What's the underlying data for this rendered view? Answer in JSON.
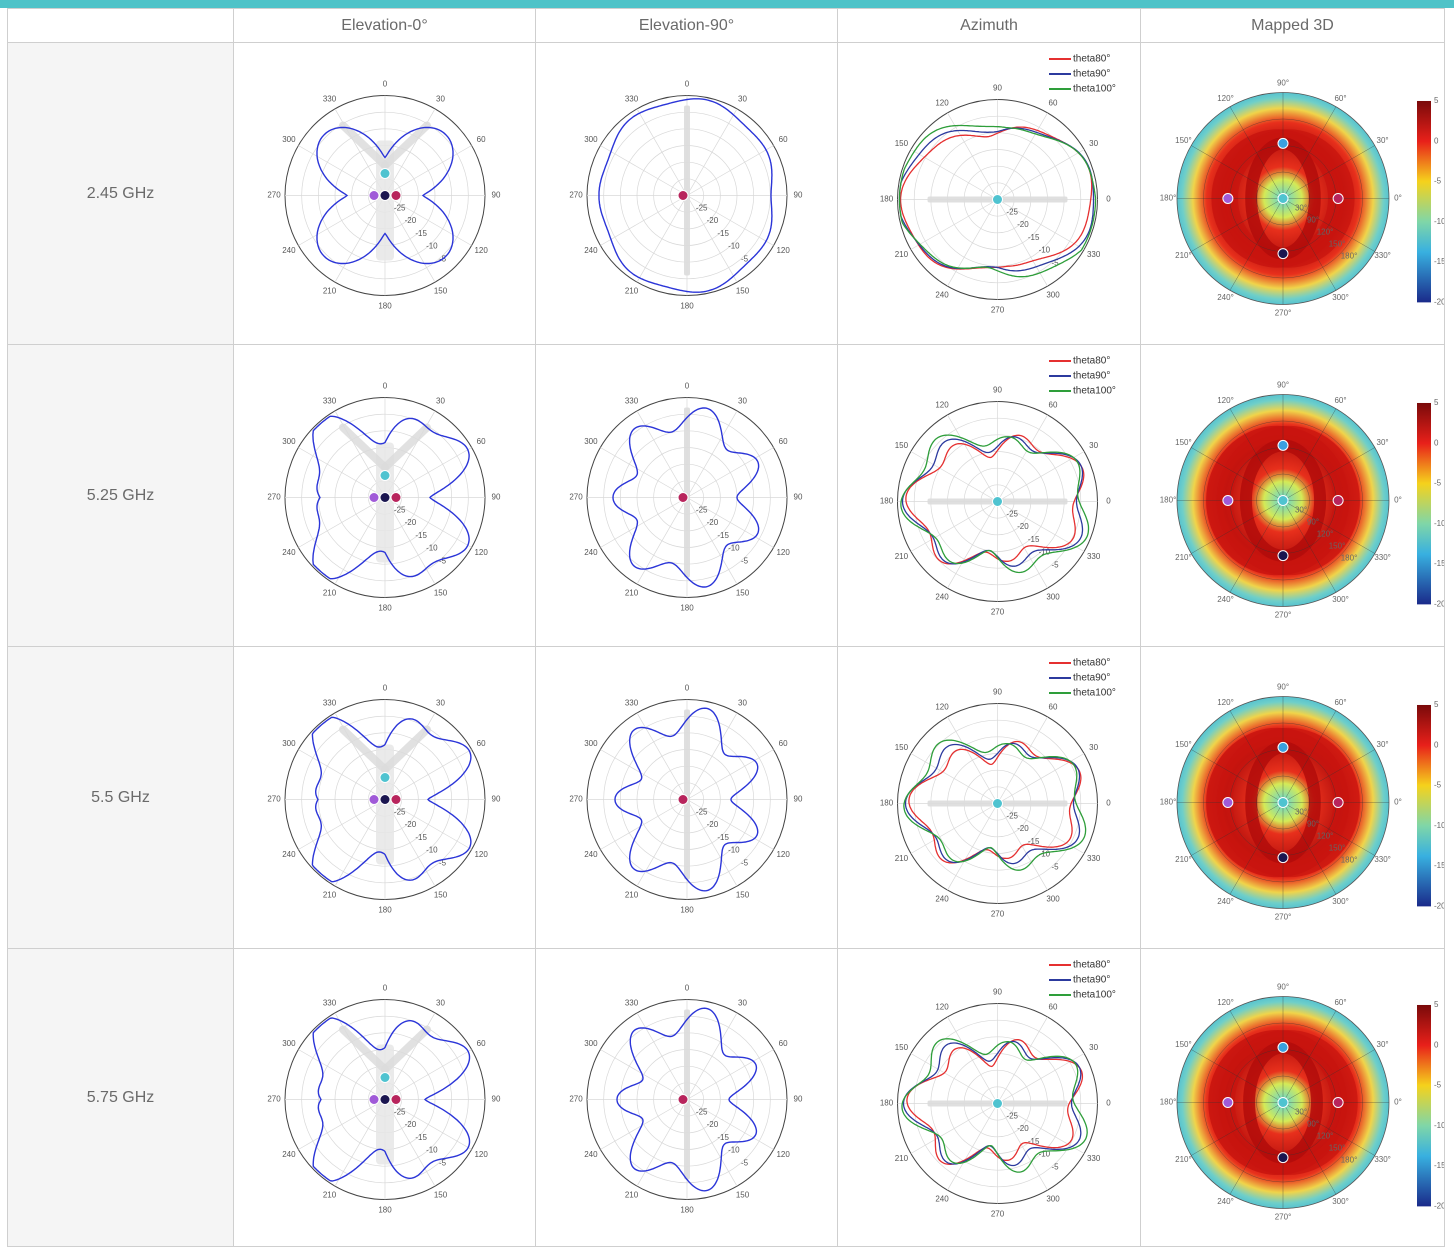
{
  "headers": [
    "",
    "Elevation-0°",
    "Elevation-90°",
    "Azimuth",
    "Mapped 3D"
  ],
  "colors": {
    "accent": "#4fc3c8",
    "pattern": "#2b35d8",
    "theta80": "#e53030",
    "theta90": "#2c3a9e",
    "theta100": "#2e9e3a"
  },
  "legend": [
    "theta80°",
    "theta90°",
    "theta100°"
  ],
  "ring_labels": [
    "-25",
    "-20",
    "-15",
    "-10",
    "-5"
  ],
  "elev_angle_labels": [
    "0",
    "30",
    "60",
    "90",
    "120",
    "150",
    "180",
    "210",
    "240",
    "270",
    "300",
    "330"
  ],
  "az_angle_labels": [
    "90",
    "60",
    "30",
    "0",
    "330",
    "300",
    "270",
    "240",
    "210",
    "180",
    "150",
    "120"
  ],
  "map_angle_labels": [
    "90°",
    "60°",
    "30°",
    "0°",
    "330°",
    "300°",
    "270°",
    "240°",
    "210°",
    "180°",
    "150°",
    "120°"
  ],
  "map_inner_labels": [
    "30°",
    "90°",
    "120°",
    "150°",
    "180°"
  ],
  "colorbar_ticks": [
    "5",
    "0",
    "-5",
    "-10",
    "-15",
    "-20"
  ],
  "chart_data": [
    {
      "type": "polar",
      "band": "2.45 GHz",
      "elev0": {
        "lobes": 4,
        "base": 0.38,
        "amp": 0.48,
        "phase": 45,
        "ripple": 0.0
      },
      "elev90": {
        "lobes": 2,
        "base": 0.86,
        "amp": 0.1,
        "phase": 0,
        "ripple": 0.02
      },
      "azimuth": {
        "lobes": 2,
        "base": 0.68,
        "amp": 0.3,
        "phase": 90,
        "ripple": 0.02
      },
      "mapped": {
        "ring": 0.55,
        "inner": 0.3
      }
    },
    {
      "type": "polar",
      "band": "5.25 GHz",
      "elev0": {
        "lobes": 4,
        "base": 0.55,
        "amp": 0.38,
        "phase": 45,
        "ripple": 0.1
      },
      "elev90": {
        "lobes": 2,
        "base": 0.62,
        "amp": 0.18,
        "phase": 0,
        "ripple": 0.12
      },
      "azimuth": {
        "lobes": 2,
        "base": 0.55,
        "amp": 0.32,
        "phase": 90,
        "ripple": 0.08
      },
      "mapped": {
        "ring": 0.6,
        "inner": 0.35
      }
    },
    {
      "type": "polar",
      "band": "5.5 GHz",
      "elev0": {
        "lobes": 4,
        "base": 0.55,
        "amp": 0.38,
        "phase": 45,
        "ripple": 0.12
      },
      "elev90": {
        "lobes": 2,
        "base": 0.58,
        "amp": 0.22,
        "phase": 0,
        "ripple": 0.14
      },
      "azimuth": {
        "lobes": 2,
        "base": 0.5,
        "amp": 0.34,
        "phase": 90,
        "ripple": 0.08
      },
      "mapped": {
        "ring": 0.6,
        "inner": 0.3
      }
    },
    {
      "type": "polar",
      "band": "5.75 GHz",
      "elev0": {
        "lobes": 4,
        "base": 0.52,
        "amp": 0.4,
        "phase": 45,
        "ripple": 0.12
      },
      "elev90": {
        "lobes": 2,
        "base": 0.56,
        "amp": 0.24,
        "phase": 0,
        "ripple": 0.14
      },
      "azimuth": {
        "lobes": 2,
        "base": 0.5,
        "amp": 0.34,
        "phase": 90,
        "ripple": 0.1
      },
      "mapped": {
        "ring": 0.58,
        "inner": 0.32
      }
    }
  ]
}
